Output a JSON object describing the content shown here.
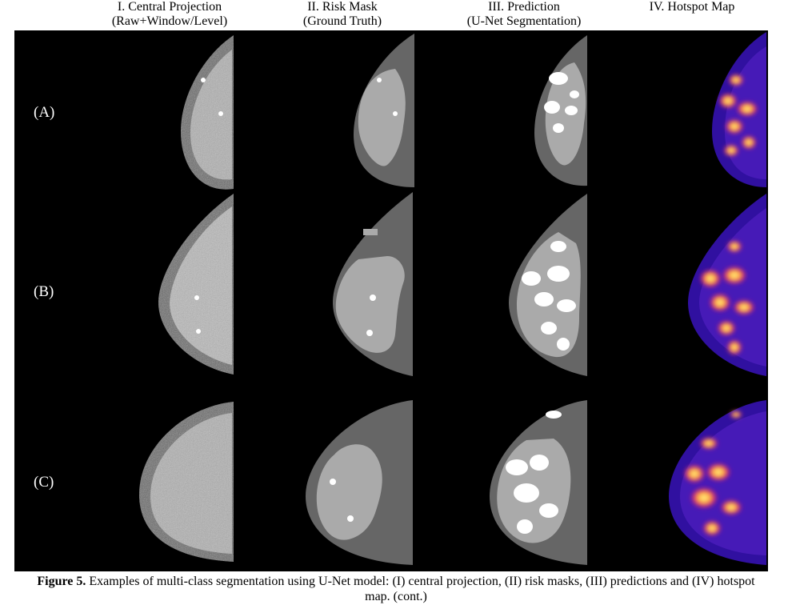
{
  "columns": [
    {
      "title": "I. Central Projection",
      "subtitle": "(Raw+Window/Level)"
    },
    {
      "title": "II. Risk Mask",
      "subtitle": "(Ground Truth)"
    },
    {
      "title": "III. Prediction",
      "subtitle": "(U-Net Segmentation)"
    },
    {
      "title": "IV. Hotspot Map",
      "subtitle": ""
    }
  ],
  "rows": [
    "(A)",
    "(B)",
    "(C)"
  ],
  "caption": {
    "label": "Figure 5.",
    "text": " Examples of multi-class segmentation using U-Net model: (I) central projection, (II) risk masks, (III) predictions and (IV) hotspot map. (cont.)"
  },
  "colors": {
    "background": "#000000",
    "tissue_gray": "#666666",
    "risk_light": "#aaaaaa",
    "hotspot_base": "#2a0a80",
    "hotspot_hot": "#ffe060"
  }
}
